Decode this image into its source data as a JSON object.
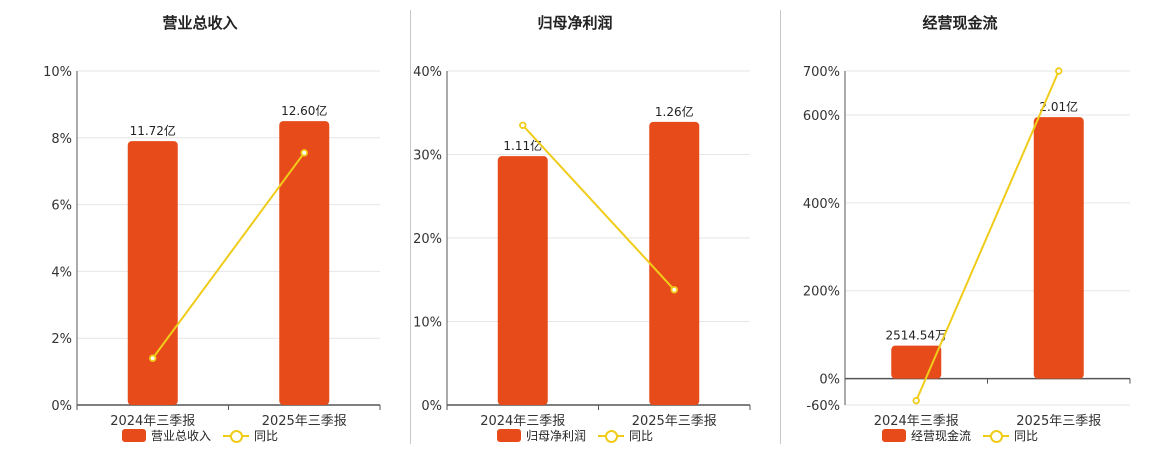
{
  "chart_data": [
    {
      "type": "bar",
      "title": "营业总收入",
      "categories": [
        "2024年三季报",
        "2025年三季报"
      ],
      "series": [
        {
          "name": "营业总收入",
          "type": "bar",
          "values": [
            7.9,
            8.5
          ],
          "labels": [
            "11.72亿",
            "12.60亿"
          ]
        },
        {
          "name": "同比",
          "type": "line",
          "values": [
            1.4,
            7.55
          ]
        }
      ],
      "y_ticks": [
        0,
        2,
        4,
        6,
        8,
        10
      ],
      "y_tick_labels": [
        "0%",
        "2%",
        "4%",
        "6%",
        "8%",
        "10%"
      ],
      "ylim": [
        0,
        10
      ],
      "legend_position": "bottom",
      "grid": true
    },
    {
      "type": "bar",
      "title": "归母净利润",
      "categories": [
        "2024年三季报",
        "2025年三季报"
      ],
      "series": [
        {
          "name": "归母净利润",
          "type": "bar",
          "values": [
            29.8,
            33.9
          ],
          "labels": [
            "1.11亿",
            "1.26亿"
          ]
        },
        {
          "name": "同比",
          "type": "line",
          "values": [
            33.5,
            13.8
          ]
        }
      ],
      "y_ticks": [
        0,
        10,
        20,
        30,
        40
      ],
      "y_tick_labels": [
        "0%",
        "10%",
        "20%",
        "30%",
        "40%"
      ],
      "ylim": [
        0,
        40
      ],
      "legend_position": "bottom",
      "grid": true
    },
    {
      "type": "bar",
      "title": "经营现金流",
      "categories": [
        "2024年三季报",
        "2025年三季报"
      ],
      "series": [
        {
          "name": "经营现金流",
          "type": "bar",
          "values": [
            75,
            595
          ],
          "labels": [
            "2514.54万",
            "2.01亿"
          ]
        },
        {
          "name": "同比",
          "type": "line",
          "values": [
            -50,
            700
          ]
        }
      ],
      "y_ticks": [
        -60,
        0,
        200,
        400,
        600,
        700
      ],
      "y_tick_labels": [
        "-60%",
        "0%",
        "200%",
        "400%",
        "600%",
        "700%"
      ],
      "ylim": [
        -60,
        700
      ],
      "legend_position": "bottom",
      "grid": true
    }
  ],
  "colors": {
    "bar": "#e84b1a",
    "line": "#f0cc1a",
    "grid": "#e6e6e6",
    "axis": "#555555"
  }
}
